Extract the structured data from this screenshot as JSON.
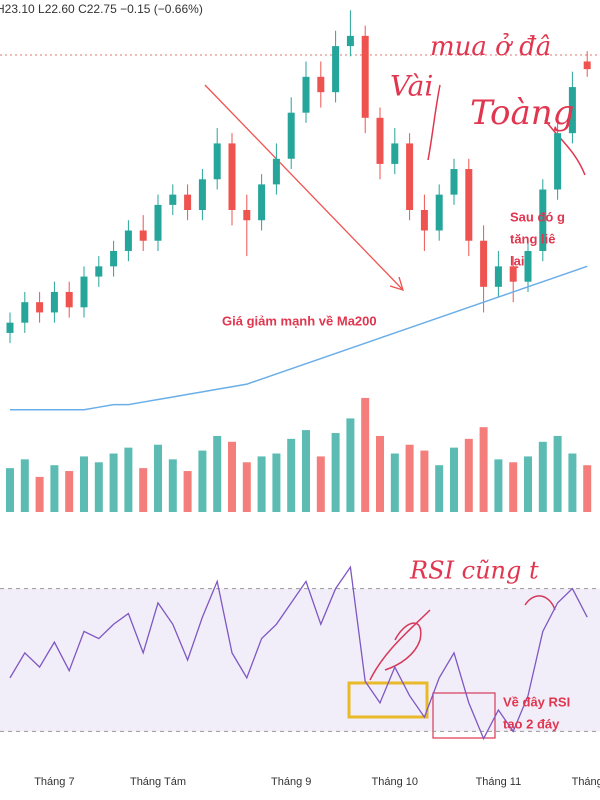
{
  "chart_data": [
    {
      "type": "candlestick",
      "header": "H23.10 L22.60 C22.75 −0.15 (−0.66%)",
      "open": [
        17.6,
        17.8,
        18.2,
        18.0,
        18.4,
        18.1,
        18.7,
        18.9,
        19.2,
        19.6,
        19.4,
        20.1,
        20.3,
        20.0,
        20.6,
        21.3,
        20.0,
        19.8,
        20.5,
        21.0,
        21.9,
        22.6,
        22.3,
        23.2,
        23.4,
        21.8,
        20.9,
        21.3,
        20.0,
        19.6,
        20.3,
        20.8,
        19.4,
        18.5,
        18.9,
        18.6,
        19.2,
        20.4,
        21.5,
        22.9
      ],
      "high": [
        18.0,
        18.4,
        18.4,
        18.6,
        18.6,
        18.9,
        19.1,
        19.4,
        19.8,
        19.9,
        20.3,
        20.5,
        20.5,
        20.8,
        21.6,
        21.5,
        20.3,
        20.7,
        21.3,
        22.2,
        22.9,
        22.9,
        23.5,
        23.9,
        23.6,
        22.0,
        21.6,
        21.5,
        20.3,
        20.5,
        21.0,
        21.0,
        19.7,
        19.2,
        19.1,
        19.4,
        20.6,
        21.8,
        22.7,
        23.1
      ],
      "low": [
        17.4,
        17.6,
        17.8,
        17.8,
        17.9,
        17.9,
        18.5,
        18.7,
        19.0,
        19.2,
        19.2,
        19.9,
        19.8,
        19.8,
        20.4,
        19.7,
        19.1,
        19.6,
        20.3,
        20.8,
        21.7,
        22.0,
        22.1,
        23.0,
        21.5,
        20.6,
        20.7,
        19.8,
        19.2,
        19.4,
        20.1,
        19.1,
        18.0,
        18.3,
        18.2,
        18.4,
        19.0,
        20.2,
        21.3,
        22.6
      ],
      "close": [
        17.8,
        18.2,
        18.0,
        18.4,
        18.1,
        18.7,
        18.9,
        19.2,
        19.6,
        19.4,
        20.1,
        20.3,
        20.0,
        20.6,
        21.3,
        20.0,
        19.8,
        20.5,
        21.0,
        21.9,
        22.6,
        22.3,
        23.2,
        23.4,
        21.8,
        20.9,
        21.3,
        20.0,
        19.6,
        20.3,
        20.8,
        19.4,
        18.5,
        18.9,
        18.6,
        19.2,
        20.4,
        21.5,
        22.4,
        22.75
      ],
      "ma": {
        "color": "#6aaee8",
        "values": [
          16.1,
          16.1,
          16.1,
          16.1,
          16.1,
          16.1,
          16.15,
          16.2,
          16.2,
          16.25,
          16.3,
          16.35,
          16.4,
          16.45,
          16.5,
          16.55,
          16.6,
          16.7,
          16.8,
          16.9,
          17.0,
          17.1,
          17.2,
          17.3,
          17.4,
          17.5,
          17.6,
          17.7,
          17.8,
          17.9,
          18.0,
          18.1,
          18.2,
          18.3,
          18.4,
          18.5,
          18.6,
          18.7,
          18.8,
          18.9
        ]
      },
      "up_color": "#26a69a",
      "down_color": "#ef5350",
      "ylim": [
        15.9,
        24.1
      ],
      "annotations": [
        "Giá giảm mạnh về Ma200",
        "Sau đó g",
        "tăng liê",
        "lại"
      ],
      "handwritten": [
        "mua ở đâ",
        "Vài",
        "Toàng"
      ]
    },
    {
      "type": "bar",
      "values": [
        1.5,
        1.8,
        1.2,
        1.6,
        1.4,
        1.9,
        1.7,
        2.0,
        2.2,
        1.5,
        2.3,
        1.8,
        1.4,
        2.1,
        2.6,
        2.4,
        1.7,
        1.9,
        2.0,
        2.5,
        2.8,
        1.9,
        2.7,
        3.2,
        3.9,
        2.6,
        2.0,
        2.3,
        2.1,
        1.6,
        2.2,
        2.5,
        2.9,
        1.8,
        1.7,
        1.9,
        2.4,
        2.6,
        2.0,
        1.6
      ],
      "ylim": [
        0,
        4
      ]
    },
    {
      "type": "line",
      "color": "#7e57c2",
      "values": [
        45,
        52,
        48,
        55,
        47,
        58,
        56,
        60,
        63,
        52,
        66,
        60,
        50,
        62,
        72,
        52,
        45,
        56,
        60,
        66,
        72,
        60,
        70,
        76,
        44,
        38,
        48,
        40,
        34,
        45,
        52,
        38,
        28,
        36,
        30,
        40,
        58,
        66,
        70,
        62
      ],
      "ylim": [
        22,
        85
      ],
      "levels": [
        70,
        30
      ],
      "xticks": [
        {
          "value": 3,
          "label": "Tháng 7"
        },
        {
          "value": 10,
          "label": "Tháng Tám"
        },
        {
          "value": 19,
          "label": "Tháng 9"
        },
        {
          "value": 26,
          "label": "Tháng 10"
        },
        {
          "value": 33,
          "label": "Tháng 11"
        },
        {
          "value": 39,
          "label": "Tháng"
        }
      ],
      "annotations": [
        "Về đây RSI",
        "tạo 2 đáy"
      ],
      "handwritten": [
        "RSI cũng t"
      ]
    }
  ]
}
